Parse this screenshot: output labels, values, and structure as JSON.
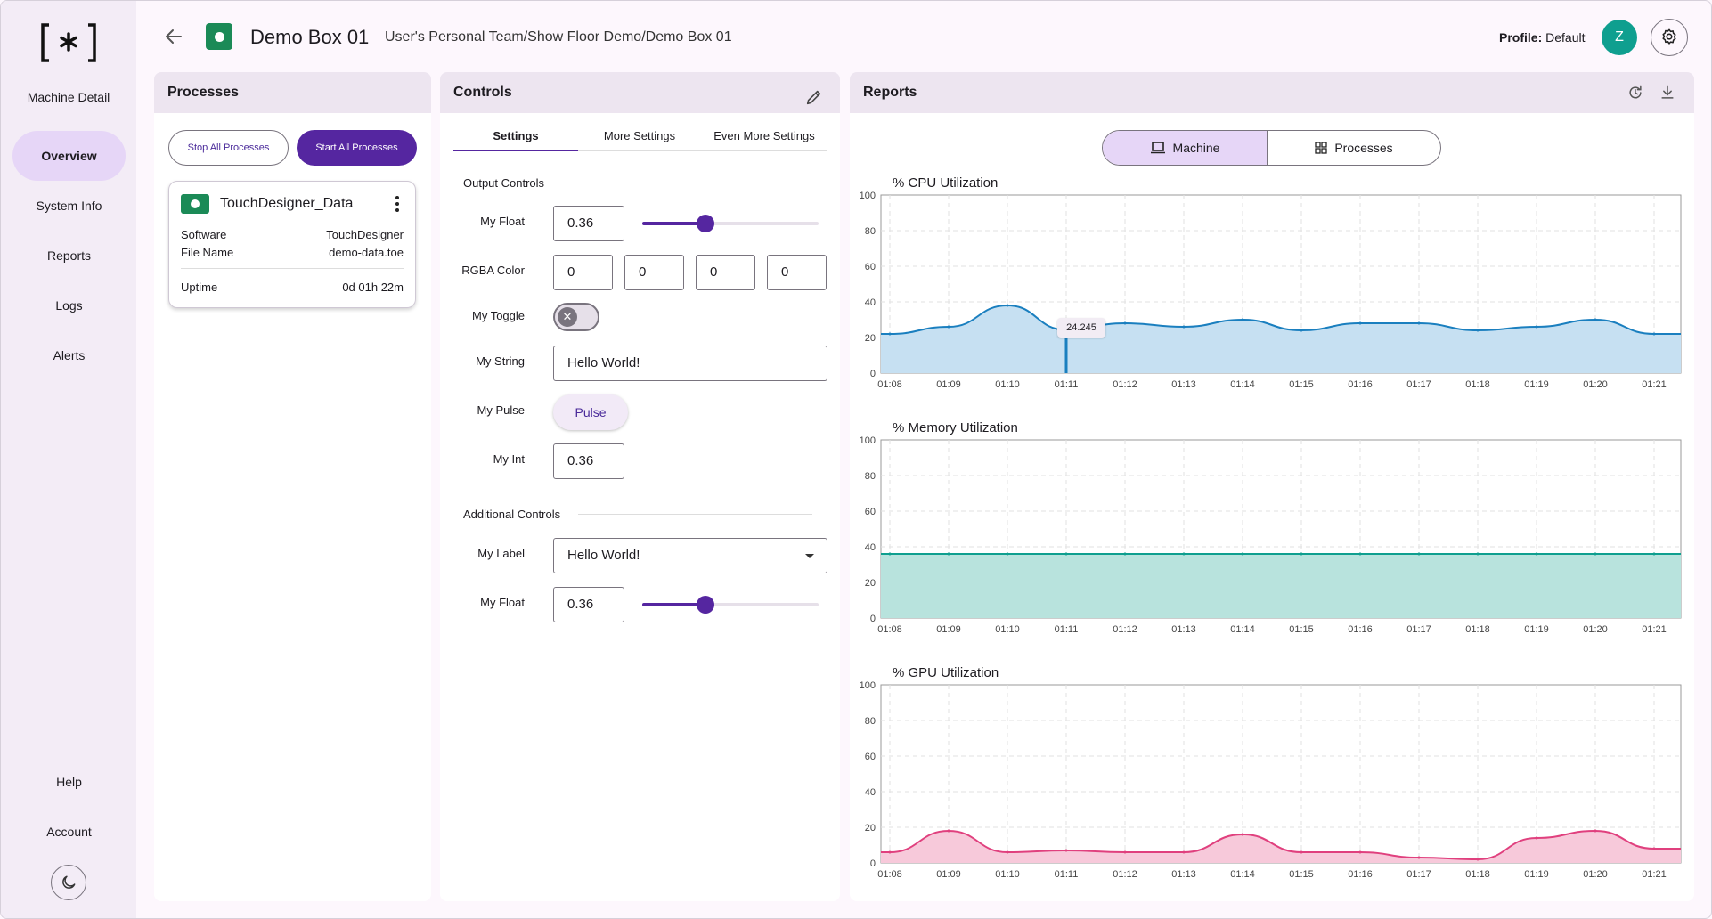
{
  "sidebar": {
    "title": "Machine Detail",
    "items": [
      {
        "label": "Overview",
        "active": true
      },
      {
        "label": "System Info"
      },
      {
        "label": "Reports"
      },
      {
        "label": "Logs"
      },
      {
        "label": "Alerts"
      }
    ],
    "bottom": [
      {
        "label": "Help"
      },
      {
        "label": "Account"
      }
    ],
    "theme_icon": "moon-icon"
  },
  "header": {
    "title": "Demo Box 01",
    "path": "User's Personal Team/Show Floor Demo/Demo Box 01",
    "profile_label": "Profile:",
    "profile_value": "Default",
    "avatar_letter": "Z",
    "status_color": "#1b8a57"
  },
  "processes": {
    "title": "Processes",
    "stop_all": "Stop All Processes",
    "start_all": "Start All Processes",
    "card": {
      "name": "TouchDesigner_Data",
      "software_label": "Software",
      "software_value": "TouchDesigner",
      "file_label": "File Name",
      "file_value": "demo-data.toe",
      "uptime_label": "Uptime",
      "uptime_value": "0d 01h 22m"
    }
  },
  "controls": {
    "title": "Controls",
    "tabs": [
      "Settings",
      "More Settings",
      "Even More Settings"
    ],
    "active_tab": 0,
    "output_section": "Output Controls",
    "my_float_label": "My Float",
    "my_float_value": "0.36",
    "my_float_level": 0.36,
    "rgba_label": "RGBA Color",
    "rgba_values": [
      "0",
      "0",
      "0",
      "0"
    ],
    "my_toggle_label": "My Toggle",
    "my_toggle_on": false,
    "my_string_label": "My String",
    "my_string_value": "Hello World!",
    "my_pulse_label": "My Pulse",
    "pulse_button": "Pulse",
    "my_int_label": "My Int",
    "my_int_value": "0.36",
    "additional_section": "Additional Controls",
    "my_label_label": "My Label",
    "my_label_value": "Hello World!",
    "my_float2_label": "My Float",
    "my_float2_value": "0.36",
    "my_float2_level": 0.36
  },
  "reports": {
    "title": "Reports",
    "segments": [
      "Machine",
      "Processes"
    ],
    "active_segment": 0,
    "tooltip": "24.245"
  },
  "chart_data": [
    {
      "type": "area",
      "title": "% CPU Utilization",
      "ylim": [
        0,
        100
      ],
      "yticks": [
        0,
        20,
        40,
        60,
        80,
        100
      ],
      "x": [
        "01:08",
        "01:09",
        "01:10",
        "01:11",
        "01:12",
        "01:13",
        "01:14",
        "01:15",
        "01:16",
        "01:17",
        "01:18",
        "01:19",
        "01:20",
        "01:21"
      ],
      "values": [
        22,
        26,
        38,
        24.245,
        28,
        26,
        30,
        24,
        28,
        28,
        24,
        26,
        30,
        22
      ],
      "color": "#1a7fbf",
      "fill": "#c6e0f2"
    },
    {
      "type": "area",
      "title": "% Memory Utilization",
      "ylim": [
        0,
        100
      ],
      "yticks": [
        0,
        20,
        40,
        60,
        80,
        100
      ],
      "x": [
        "01:08",
        "01:09",
        "01:10",
        "01:11",
        "01:12",
        "01:13",
        "01:14",
        "01:15",
        "01:16",
        "01:17",
        "01:18",
        "01:19",
        "01:20",
        "01:21"
      ],
      "values": [
        36,
        36,
        36,
        36,
        36,
        36,
        36,
        36,
        36,
        36,
        36,
        36,
        36,
        36
      ],
      "color": "#0f9f8f",
      "fill": "#b8e3dd"
    },
    {
      "type": "area",
      "title": "% GPU Utilization",
      "ylim": [
        0,
        100
      ],
      "yticks": [
        0,
        20,
        40,
        60,
        80,
        100
      ],
      "x": [
        "01:08",
        "01:09",
        "01:10",
        "01:11",
        "01:12",
        "01:13",
        "01:14",
        "01:15",
        "01:16",
        "01:17",
        "01:18",
        "01:19",
        "01:20",
        "01:21"
      ],
      "values": [
        6,
        18,
        6,
        7,
        6,
        6,
        16,
        6,
        6,
        3,
        2,
        14,
        18,
        8
      ],
      "color": "#e0407e",
      "fill": "#f7c9da"
    }
  ]
}
